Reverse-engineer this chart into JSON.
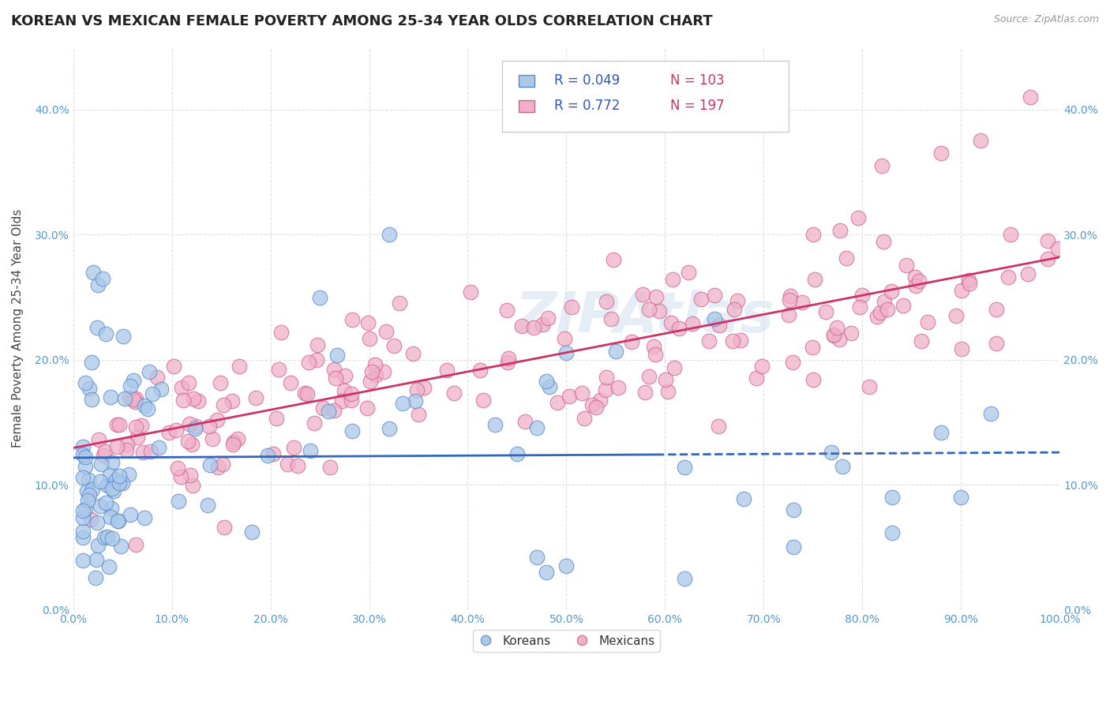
{
  "title": "KOREAN VS MEXICAN FEMALE POVERTY AMONG 25-34 YEAR OLDS CORRELATION CHART",
  "source": "Source: ZipAtlas.com",
  "ylabel": "Female Poverty Among 25-34 Year Olds",
  "xlim": [
    0.0,
    1.0
  ],
  "ylim": [
    0.0,
    0.45
  ],
  "x_ticks": [
    0.0,
    0.1,
    0.2,
    0.3,
    0.4,
    0.5,
    0.6,
    0.7,
    0.8,
    0.9,
    1.0
  ],
  "x_tick_labels": [
    "0.0%",
    "10.0%",
    "20.0%",
    "30.0%",
    "40.0%",
    "50.0%",
    "60.0%",
    "70.0%",
    "80.0%",
    "90.0%",
    "100.0%"
  ],
  "y_ticks": [
    0.0,
    0.1,
    0.2,
    0.3,
    0.4
  ],
  "y_tick_labels": [
    "0.0%",
    "10.0%",
    "20.0%",
    "30.0%",
    "40.0%"
  ],
  "korean_face_color": "#aac8e8",
  "korean_edge_color": "#5588cc",
  "mexican_face_color": "#f0b0c8",
  "mexican_edge_color": "#d06090",
  "trend_korean_color": "#3366bb",
  "trend_mexican_color": "#cc3366",
  "legend_R_color": "#3355bb",
  "legend_N_color": "#cc3366",
  "R_korean": 0.049,
  "N_korean": 103,
  "R_mexican": 0.772,
  "N_mexican": 197,
  "background_color": "#ffffff",
  "grid_color": "#cccccc",
  "watermark": "ZIPAtlas"
}
